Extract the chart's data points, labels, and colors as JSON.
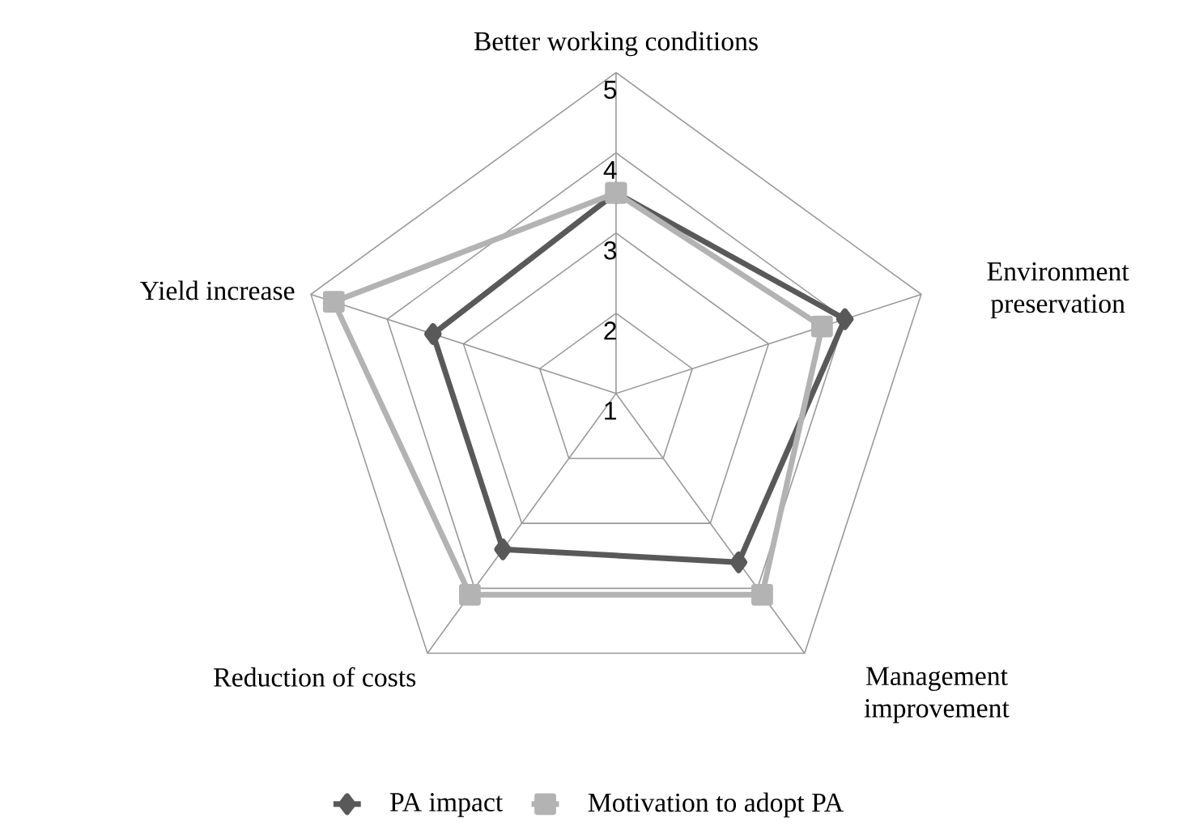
{
  "chart_data": {
    "type": "radar",
    "categories": [
      "Better working conditions",
      "Environment preservation",
      "Management improvement",
      "Reduction of costs",
      "Yield  increase"
    ],
    "ylim": [
      1,
      5
    ],
    "yticks": [
      1,
      2,
      3,
      4,
      5
    ],
    "grid": true,
    "legend": "bottom",
    "series": [
      {
        "name": "PA impact",
        "color": "#595959",
        "marker": "diamond",
        "values": [
          3.5,
          4.0,
          3.6,
          3.4,
          3.4
        ]
      },
      {
        "name": "Motivation to adopt PA",
        "color": "#b3b3b3",
        "marker": "square",
        "values": [
          3.5,
          3.7,
          4.1,
          4.1,
          4.7
        ]
      }
    ]
  }
}
